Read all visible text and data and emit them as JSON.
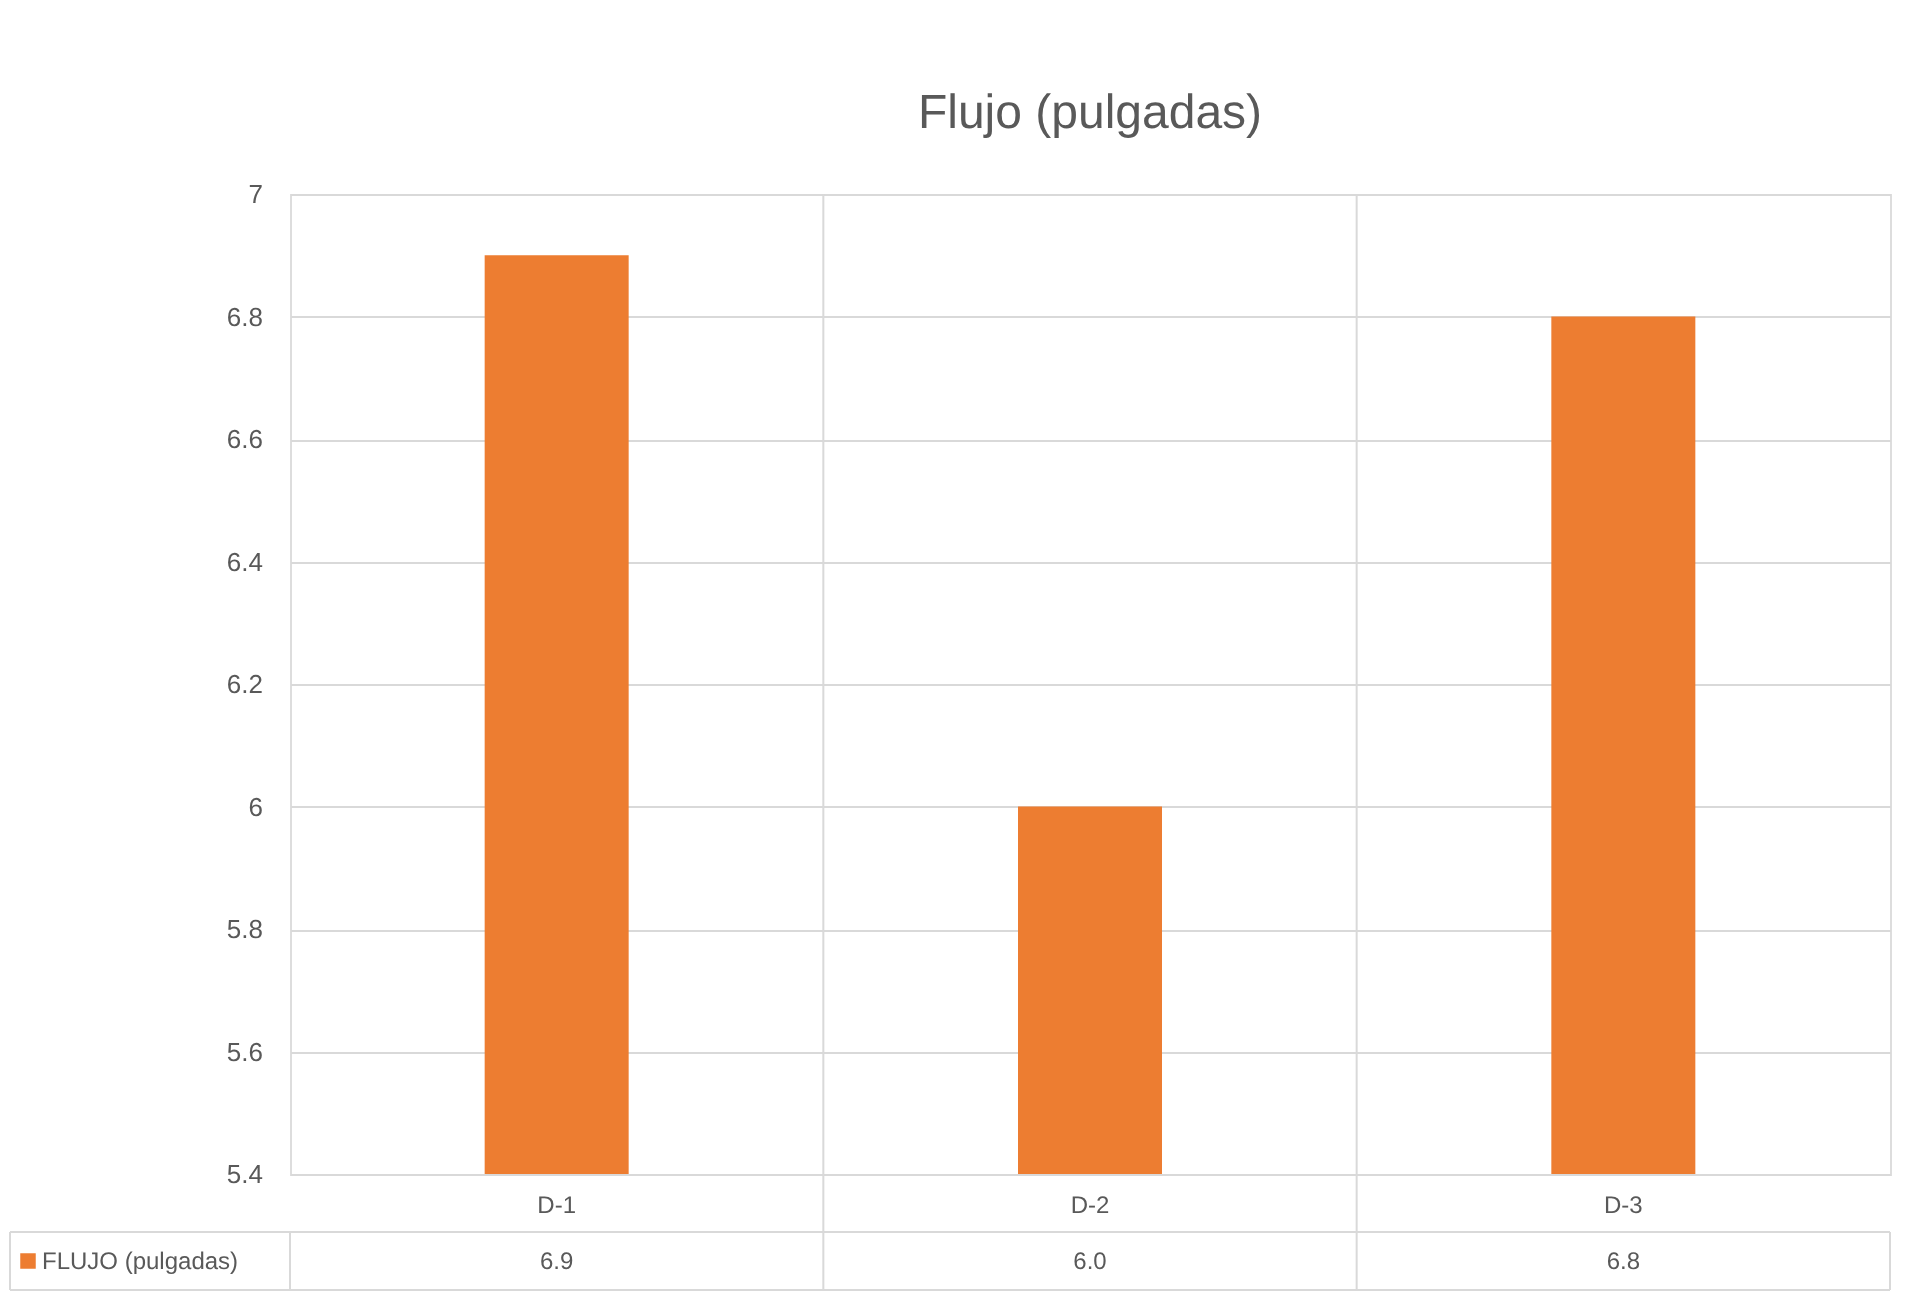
{
  "chart_data": {
    "type": "bar",
    "title": "Flujo (pulgadas)",
    "categories": [
      "D-1",
      "D-2",
      "D-3"
    ],
    "series": [
      {
        "name": "FLUJO (pulgadas)",
        "color": "#ed7d31",
        "values": [
          6.9,
          6.0,
          6.8
        ],
        "value_labels": [
          "6.9",
          "6.0",
          "6.8"
        ]
      }
    ],
    "ylim": [
      5.4,
      7
    ],
    "yticks": [
      5.4,
      5.6,
      5.8,
      {
        "value": 6,
        "label": "6"
      },
      6.2,
      6.4,
      6.6,
      6.8,
      {
        "value": 7,
        "label": "7"
      }
    ],
    "grid": true,
    "legend": "bottom"
  }
}
